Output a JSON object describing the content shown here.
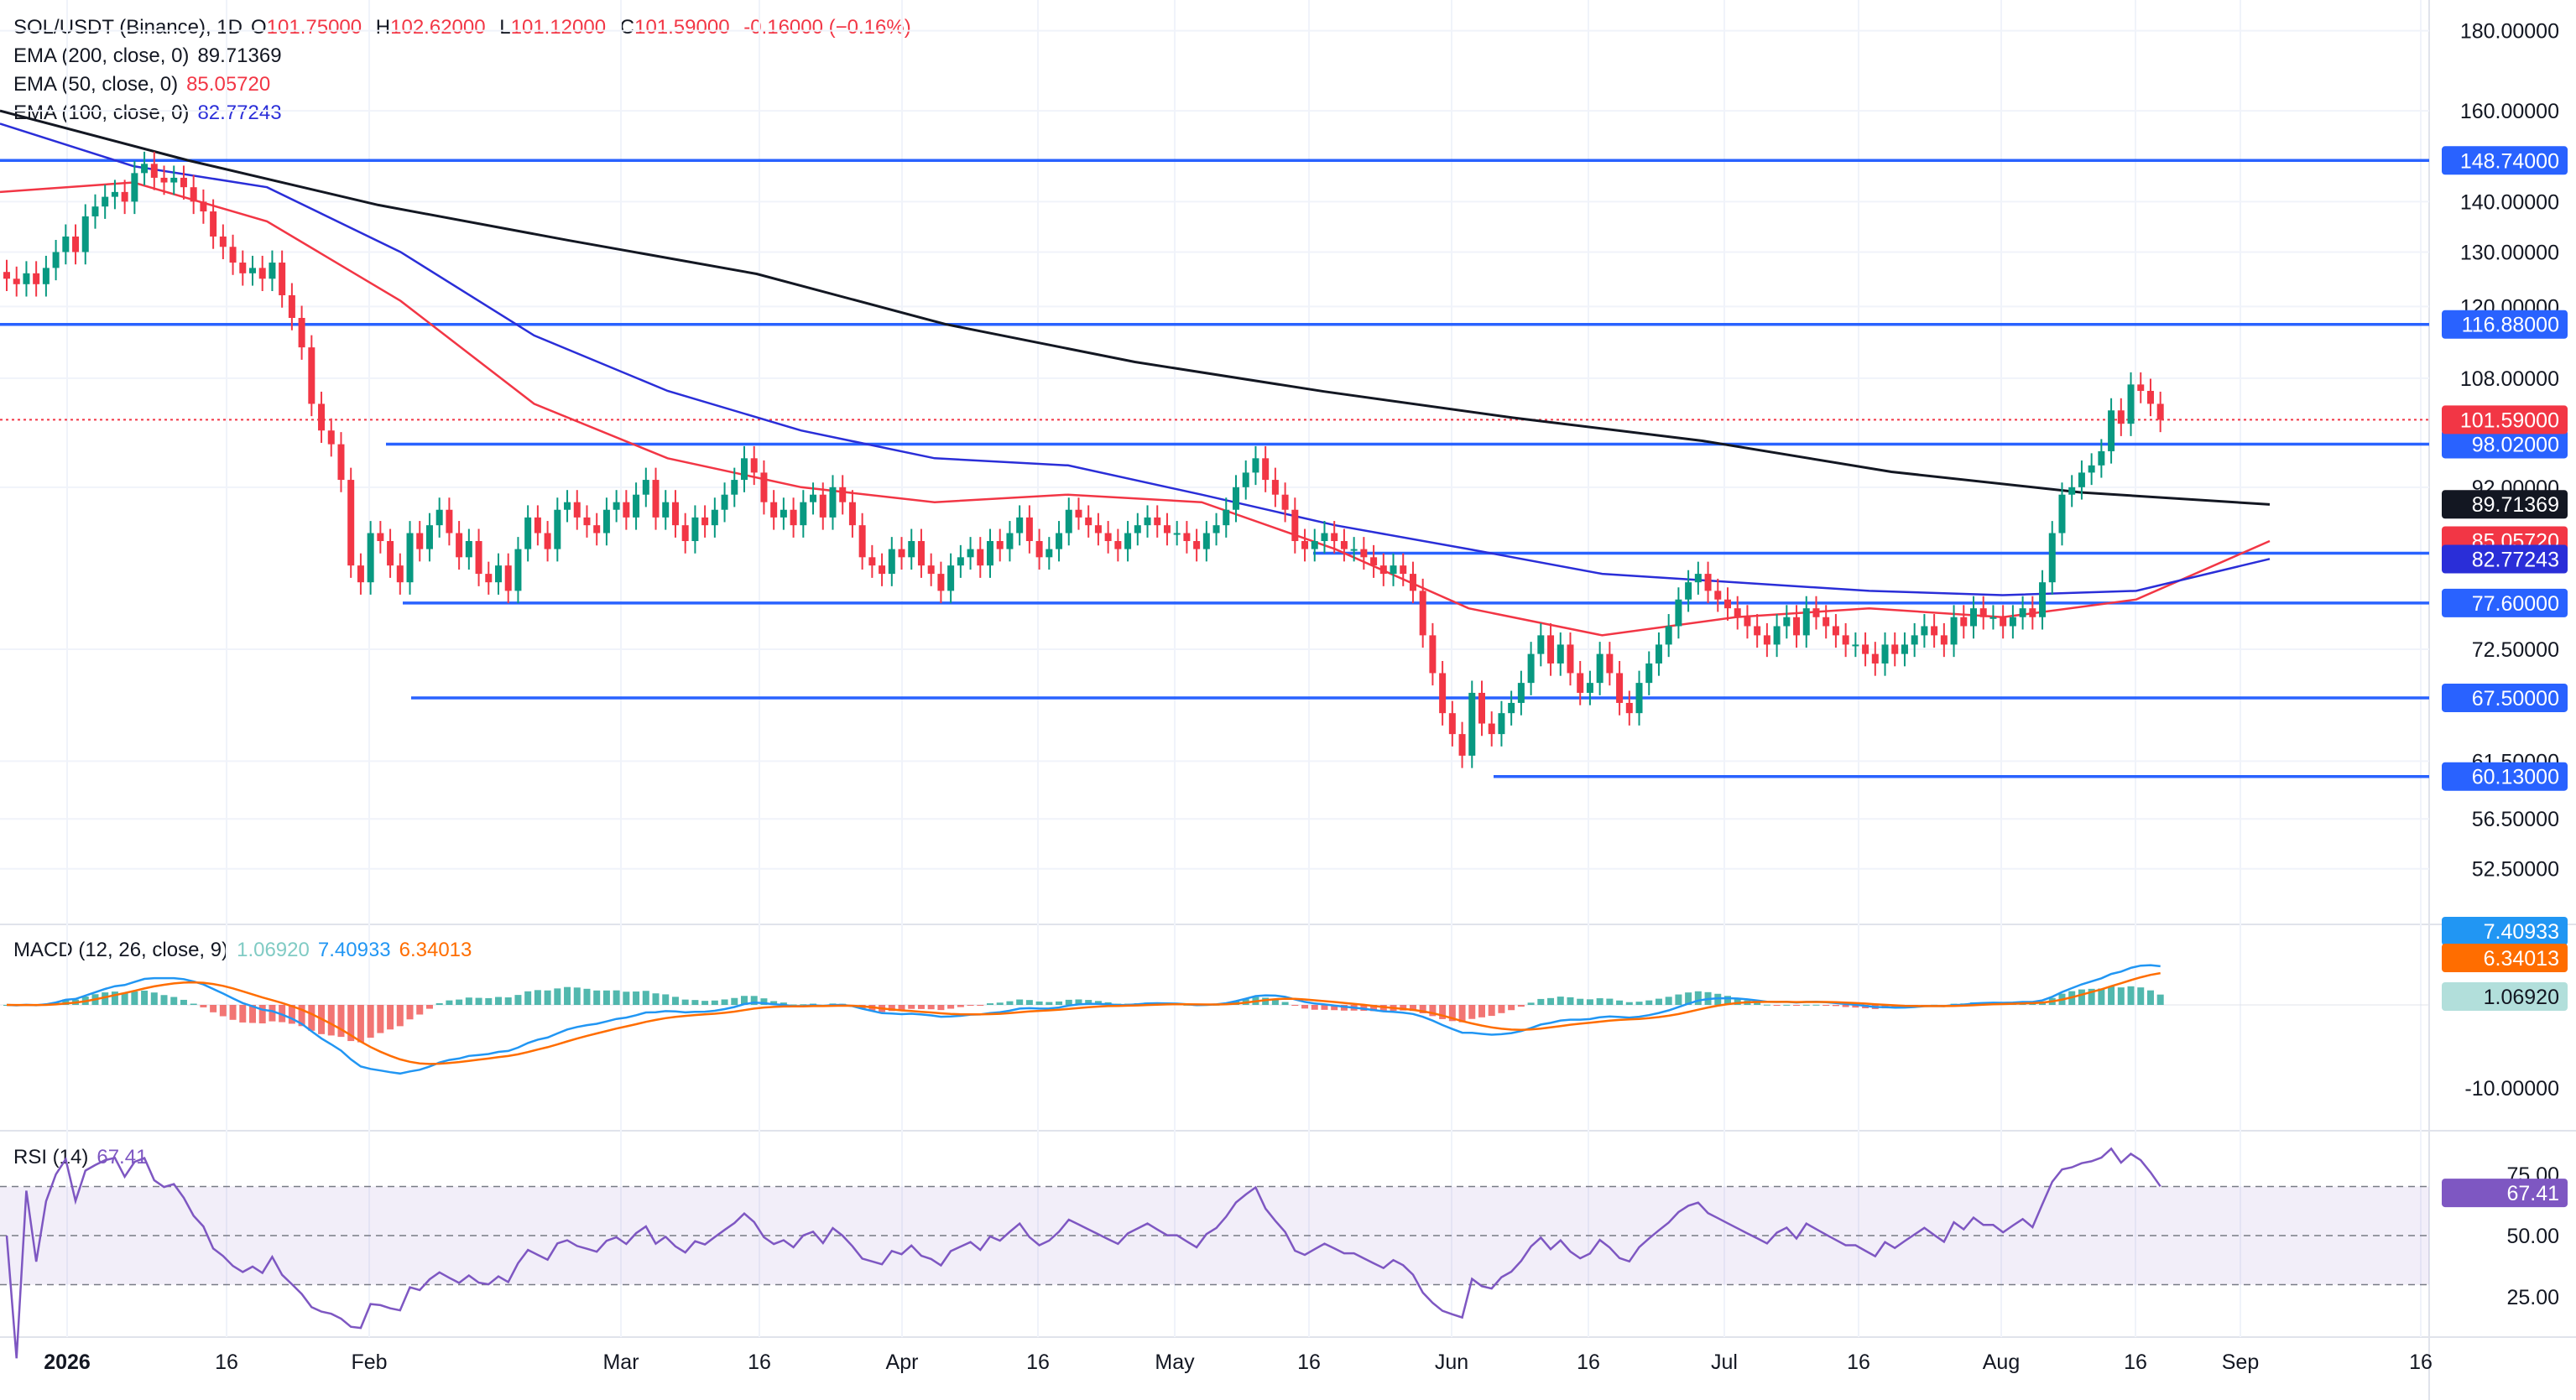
{
  "header": {
    "symbol": "SOL/USDT (Binance), 1D",
    "open_label": "O",
    "open": "101.75000",
    "high_label": "H",
    "high": "102.62000",
    "low_label": "L",
    "low": "101.12000",
    "close_label": "C",
    "close": "101.59000",
    "change": "-0.16000 (−0.16%)"
  },
  "ema_legend": [
    {
      "label": "EMA (200, close, 0)",
      "value": "89.71369",
      "color": "#131722"
    },
    {
      "label": "EMA (50, close, 0)",
      "value": "85.05720",
      "color": "#f23645"
    },
    {
      "label": "EMA (100, close, 0)",
      "value": "82.77243",
      "color": "#2a2ed8"
    }
  ],
  "macd_legend": {
    "label": "MACD (12, 26, close, 9)",
    "hist": "1.06920",
    "macd": "7.40933",
    "signal": "6.34013"
  },
  "rsi_legend": {
    "label": "RSI (14)",
    "value": "67.41"
  },
  "colors": {
    "up": "#089981",
    "down": "#f23645",
    "level": "#2962ff",
    "ema200": "#131722",
    "ema50": "#f23645",
    "ema100": "#2a2ed8",
    "macd": "#2196f3",
    "signal": "#ff6d00",
    "rsi": "#7e57c2"
  },
  "chart_data": [
    {
      "type": "candlestick",
      "title": "SOL/USDT (Binance), 1D",
      "y_scale": "log",
      "ylim": [
        48.5,
        186
      ],
      "price_ticks": [
        "180.00000",
        "160.00000",
        "140.00000",
        "130.00000",
        "120.00000",
        "108.00000",
        "92.00000",
        "72.50000",
        "61.50000",
        "56.50000",
        "52.50000"
      ],
      "x_ticks": [
        "2026",
        "16",
        "Feb",
        "Mar",
        "16",
        "Apr",
        "16",
        "May",
        "16",
        "Jun",
        "16",
        "Jul",
        "16",
        "Aug",
        "16",
        "Sep",
        "16"
      ],
      "horizontal_levels": [
        "148.74000",
        "116.88000",
        "98.02000",
        "83.50000",
        "77.60000",
        "67.50000",
        "60.13000"
      ],
      "current_price": "101.59000",
      "ema": [
        {
          "name": "EMA 200",
          "last": "89.71369",
          "values": [
            160,
            148.7,
            139.3,
            132.3,
            125.9,
            116.9,
            110.6,
            105.9,
            101.9,
            98.5,
            94.1,
            91.3,
            89.7
          ]
        },
        {
          "name": "EMA 50",
          "last": "85.05720",
          "values": [
            142,
            144,
            136,
            121,
            104,
            96,
            92,
            90,
            91,
            90,
            84,
            77,
            74,
            76,
            77,
            76,
            78,
            85
          ]
        },
        {
          "name": "EMA 100",
          "last": "82.77243",
          "values": [
            157,
            147.5,
            143,
            130,
            115,
            106,
            100,
            96,
            95,
            91,
            87,
            84,
            81,
            80,
            79,
            78.5,
            79,
            82.8
          ]
        }
      ],
      "candles_close": [
        125,
        124,
        126,
        124,
        127,
        130,
        133,
        130,
        137,
        139,
        141,
        142,
        140,
        146,
        148,
        145,
        144,
        145,
        143,
        140,
        138,
        133,
        131,
        128,
        126,
        127,
        125,
        128,
        122,
        118,
        113,
        104,
        100,
        98,
        93,
        82,
        80,
        86,
        85,
        82,
        80,
        86,
        84,
        87,
        89,
        86,
        83,
        85,
        81,
        80,
        82,
        79,
        84,
        88,
        86,
        84,
        89,
        90,
        88,
        87,
        86,
        89,
        90,
        88,
        91,
        93,
        88,
        90,
        87,
        85,
        88,
        87,
        89,
        91,
        93,
        96,
        94,
        90,
        88,
        89,
        87,
        90,
        91,
        88,
        92,
        90,
        87,
        83,
        82,
        81,
        84,
        83,
        85,
        82,
        81,
        79,
        82,
        83,
        84,
        82,
        85,
        84,
        86,
        88,
        85,
        83,
        84,
        86,
        89,
        88,
        87,
        86,
        85,
        84,
        86,
        87,
        88,
        87,
        86,
        86,
        85,
        84,
        86,
        87,
        89,
        92,
        94,
        96,
        93,
        91,
        89,
        85,
        84,
        85,
        86,
        85,
        84,
        84,
        83,
        82,
        81,
        82,
        81,
        79,
        74,
        70,
        66,
        64,
        62,
        68,
        65,
        64,
        66,
        67,
        69,
        72,
        74,
        71,
        73,
        70,
        68,
        69,
        72,
        70,
        67,
        66,
        69,
        71,
        73,
        75,
        78,
        80,
        81,
        79,
        78,
        77,
        76,
        75,
        74,
        73,
        75,
        76,
        74,
        77,
        76,
        75,
        74,
        73,
        73,
        72,
        71,
        73,
        72,
        73,
        74,
        75,
        74,
        73,
        76,
        75,
        77,
        76,
        76,
        75,
        76,
        77,
        76,
        80,
        86,
        91,
        92,
        94,
        95,
        97,
        103,
        101,
        107,
        106,
        104,
        101.59
      ],
      "macd": {
        "label": "MACD (12, 26, close, 9)",
        "histogram": "1.06920",
        "macd": "7.40933",
        "signal": "6.34013",
        "ticks": [
          "-10.00000"
        ]
      },
      "rsi": {
        "label": "RSI (14)",
        "value": "67.41",
        "ticks": [
          "75.00",
          "50.00",
          "25.00"
        ],
        "upper": 70,
        "middle": 50,
        "lower": 30
      }
    }
  ]
}
